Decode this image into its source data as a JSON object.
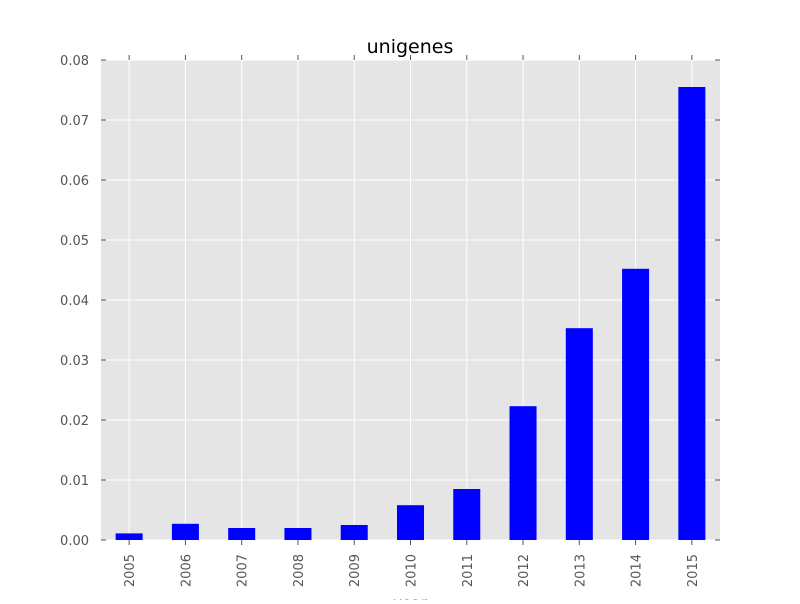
{
  "chart_data": {
    "type": "bar",
    "title": "unigenes",
    "xlabel": "year",
    "ylabel": "",
    "categories": [
      "2005",
      "2006",
      "2007",
      "2008",
      "2009",
      "2010",
      "2011",
      "2012",
      "2013",
      "2014",
      "2015"
    ],
    "values": [
      0.0011,
      0.0027,
      0.002,
      0.002,
      0.0025,
      0.0058,
      0.0085,
      0.0223,
      0.0353,
      0.0452,
      0.0755
    ],
    "ylim": [
      0,
      0.08
    ],
    "yticks": [
      "0.00",
      "0.01",
      "0.02",
      "0.03",
      "0.04",
      "0.05",
      "0.06",
      "0.07",
      "0.08"
    ],
    "grid": true,
    "legend": "none",
    "colors": {
      "bar": "#0000ff",
      "plot_background": "#e5e5e5",
      "grid": "#ffffff",
      "tick_text": "#555555",
      "title": "#000000"
    }
  }
}
